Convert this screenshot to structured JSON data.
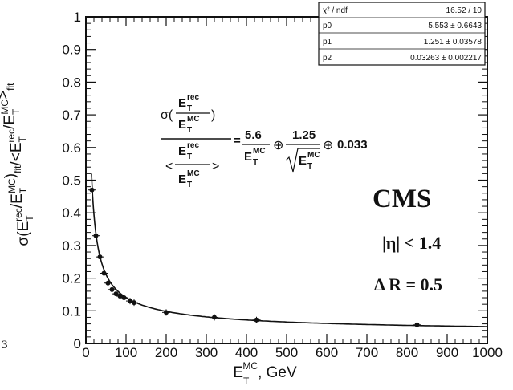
{
  "chart_data": {
    "type": "scatter",
    "title": "",
    "xlabel": {
      "base": "E",
      "sup": "MC",
      "sub": "T",
      "suffix": ", GeV"
    },
    "ylabel": {
      "full": "σ(E_T^rec/E_T^MC)_fit/<E_T^rec/E_T^MC>_fit",
      "parts": [
        {
          "t": "σ(E"
        },
        {
          "sub": "T",
          "sup": "rec"
        },
        {
          "t": "/E"
        },
        {
          "sub": "T",
          "sup": "MC"
        },
        {
          "t": ")"
        },
        {
          "sub2": "fit"
        },
        {
          "t": "/<E"
        },
        {
          "sub": "T",
          "sup": "rec"
        },
        {
          "t": "/E"
        },
        {
          "sub": "T",
          "sup": "MC"
        },
        {
          "t": ">"
        },
        {
          "sub2": "fit"
        }
      ]
    },
    "xlim": [
      0,
      1000
    ],
    "ylim": [
      0,
      1
    ],
    "xticks": [
      "0",
      "100",
      "200",
      "300",
      "400",
      "500",
      "600",
      "700",
      "800",
      "900",
      "1000"
    ],
    "yticks": [
      "0",
      "0.1",
      "0.2",
      "0.3",
      "0.4",
      "0.5",
      "0.6",
      "0.7",
      "0.8",
      "0.9",
      "1"
    ],
    "grid": false,
    "series": [
      {
        "points": [
          [
            15,
            0.47
          ],
          [
            25,
            0.33
          ],
          [
            35,
            0.265
          ],
          [
            45,
            0.215
          ],
          [
            55,
            0.185
          ],
          [
            65,
            0.165
          ],
          [
            75,
            0.152
          ],
          [
            85,
            0.145
          ],
          [
            95,
            0.14
          ],
          [
            110,
            0.13
          ],
          [
            120,
            0.125
          ],
          [
            200,
            0.095
          ],
          [
            320,
            0.08
          ],
          [
            425,
            0.072
          ],
          [
            825,
            0.057
          ]
        ]
      }
    ],
    "fit": {
      "p0": 5.553,
      "p1": 1.251,
      "p2": 0.03263
    },
    "stats_box": {
      "rows": [
        [
          "χ² / ndf",
          "16.52 / 10"
        ],
        [
          "p0",
          "5.553 ± 0.6643"
        ],
        [
          "p1",
          "1.251 ± 0.03578"
        ],
        [
          "p2",
          "0.03263 ± 0.002217"
        ]
      ]
    },
    "annotations": {
      "experiment": "CMS",
      "eta_cut": "|η| < 1.4",
      "delta_r": "Δ R = 0.5"
    },
    "formula": {
      "E": "E",
      "T": "T",
      "rec": "rec",
      "mc": "MC",
      "sigma_open": "σ(",
      "close": ")",
      "angle_open": "<",
      "angle_close": ">",
      "equals": "=",
      "c1": "5.6",
      "c2": "1.25",
      "oplus": "⊕",
      "c3": "0.033"
    },
    "stray_label": "3"
  }
}
